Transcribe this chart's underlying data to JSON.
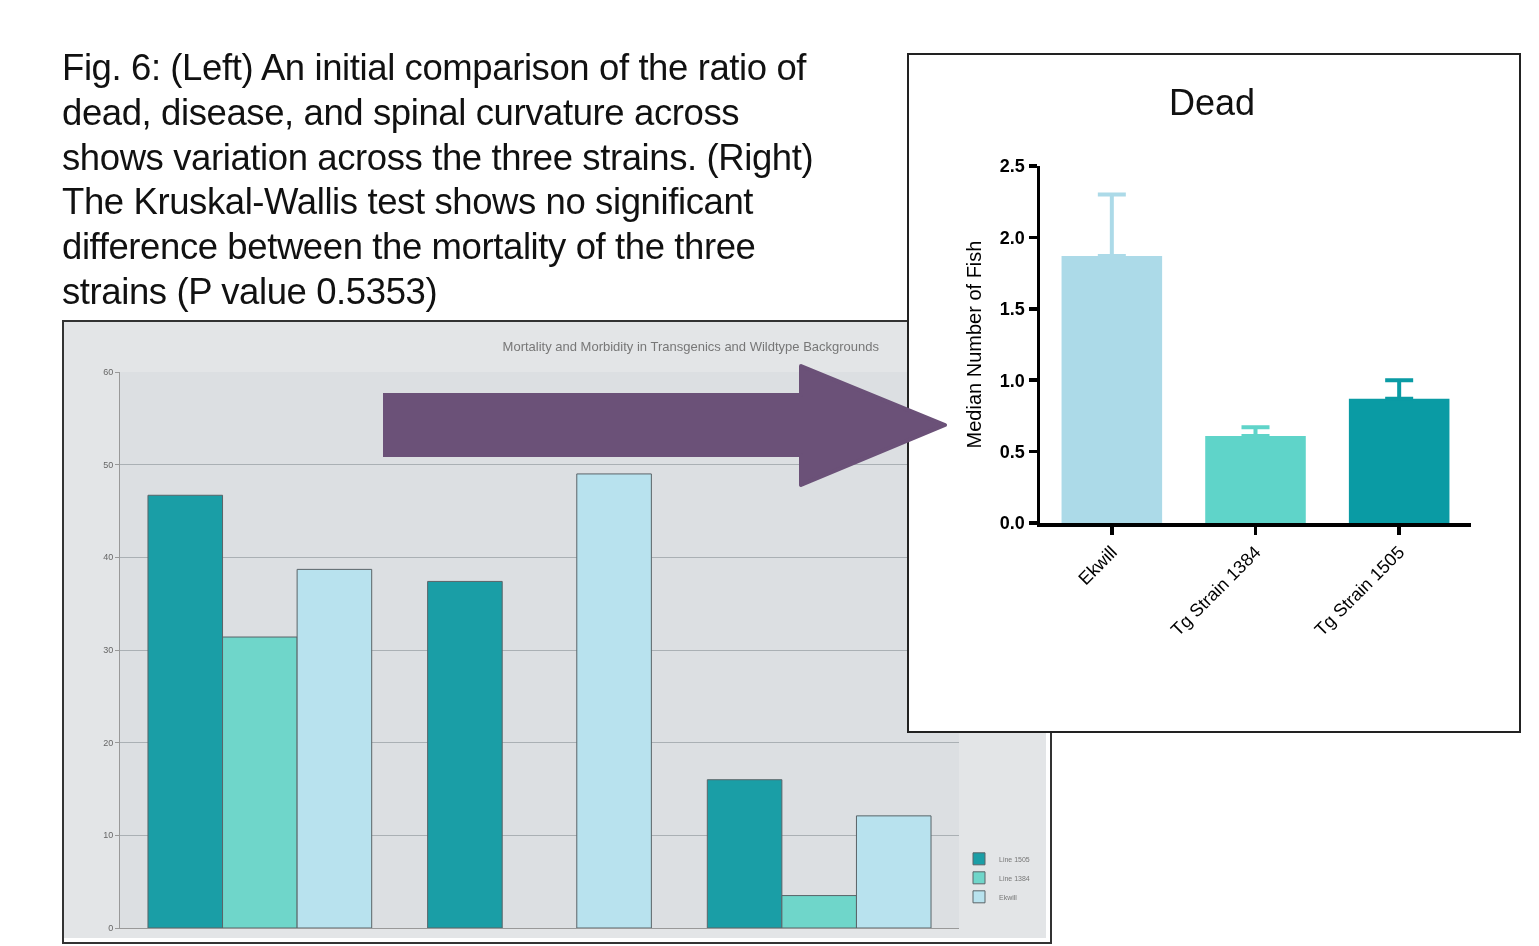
{
  "chart_data": [
    {
      "type": "bar",
      "title": "Mortality and Morbidity in Transgenics and Wildtype Backgrounds",
      "annotations": [
        "Fig. 6: (Left) An initial comparison of the ratio of dead, disease, and spinal curvature across shows variation across the three strains.  (Right) The Kruskal-Wallis test shows no significant difference between the mortality of the three strains (P value 0.5353)"
      ],
      "categories": [
        null,
        null,
        null
      ],
      "series": [
        {
          "name": "Line 1505",
          "color": "#1a9ea6",
          "values": [
            46.7,
            37.4,
            16.0
          ]
        },
        {
          "name": "Line 1384",
          "color": "#6fd6ca",
          "values": [
            31.4,
            null,
            3.5
          ]
        },
        {
          "name": "Ekwill",
          "color": "#b8e2ee",
          "values": [
            38.7,
            49.0,
            12.1
          ]
        }
      ],
      "ylim": [
        0,
        60
      ],
      "yticks": [
        0,
        10,
        20,
        30,
        40,
        50,
        60
      ],
      "grid": "y",
      "legend": "bottom right"
    },
    {
      "type": "bar",
      "title": "Dead",
      "ylabel": "Median Number of Fish",
      "categories": [
        "Ekwill",
        "Tg Strain 1384",
        "Tg Strain 1505"
      ],
      "values": [
        1.87,
        0.61,
        0.87
      ],
      "colors": [
        "#acdae8",
        "#5fd4c9",
        "#0a9ba4"
      ],
      "errors": [
        [
          1.87,
          2.3
        ],
        [
          0.61,
          0.67
        ],
        [
          0.87,
          1.0
        ]
      ],
      "ylim": [
        0,
        2.5
      ],
      "yticks": [
        {
          "value": 0,
          "label": "0.0"
        },
        {
          "value": 0.5,
          "label": "0.5"
        },
        {
          "value": 1,
          "label": "1.0"
        },
        {
          "value": 1.5,
          "label": "1.5"
        },
        {
          "value": 2,
          "label": "2.0"
        },
        {
          "value": 2.5,
          "label": "2.5"
        }
      ]
    }
  ]
}
